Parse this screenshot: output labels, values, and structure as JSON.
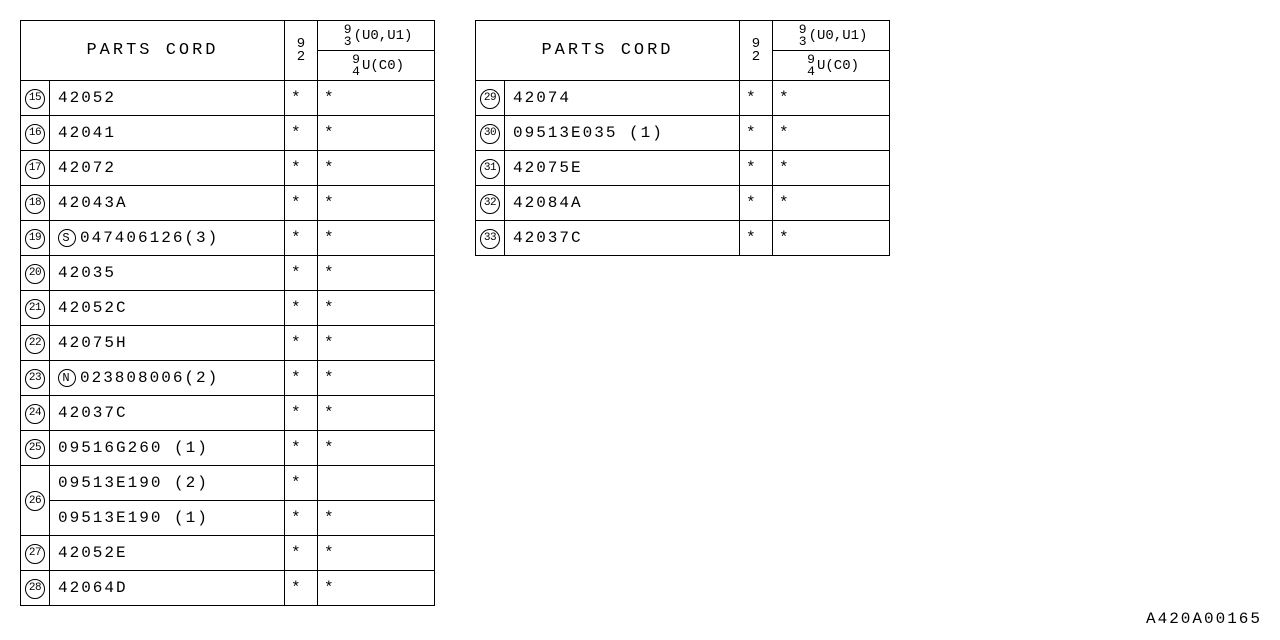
{
  "header": {
    "parts_label": "PARTS CORD",
    "col_a_top": "9",
    "col_a_bot": "2",
    "col_b_top_num": "9 3",
    "col_b_top_rest": "(U0,U1)",
    "col_b_bot_num": "9 4",
    "col_b_bot_rest": "U(C0)"
  },
  "mark": "*",
  "table1": {
    "rows": [
      {
        "num": "15",
        "part": "42052",
        "a": "*",
        "b": "*",
        "span": 1
      },
      {
        "num": "16",
        "part": "42041",
        "a": "*",
        "b": "*",
        "span": 1
      },
      {
        "num": "17",
        "part": "42072",
        "a": "*",
        "b": "*",
        "span": 1
      },
      {
        "num": "18",
        "part": "42043A",
        "a": "*",
        "b": "*",
        "span": 1
      },
      {
        "num": "19",
        "prefix": "S",
        "part": "047406126(3)",
        "a": "*",
        "b": "*",
        "span": 1
      },
      {
        "num": "20",
        "part": "42035",
        "a": "*",
        "b": "*",
        "span": 1
      },
      {
        "num": "21",
        "part": "42052C",
        "a": "*",
        "b": "*",
        "span": 1
      },
      {
        "num": "22",
        "part": "42075H",
        "a": "*",
        "b": "*",
        "span": 1
      },
      {
        "num": "23",
        "prefix": "N",
        "part": "023808006(2)",
        "a": "*",
        "b": "*",
        "span": 1
      },
      {
        "num": "24",
        "part": "42037C",
        "a": "*",
        "b": "*",
        "span": 1
      },
      {
        "num": "25",
        "part": "09516G260 (1)",
        "a": "*",
        "b": "*",
        "span": 1
      },
      {
        "num": "26",
        "part": "09513E190 (2)",
        "a": "*",
        "b": "",
        "span": 2
      },
      {
        "num": "",
        "part": "09513E190 (1)",
        "a": "*",
        "b": "*",
        "span": 0
      },
      {
        "num": "27",
        "part": "42052E",
        "a": "*",
        "b": "*",
        "span": 1
      },
      {
        "num": "28",
        "part": "42064D",
        "a": "*",
        "b": "*",
        "span": 1
      }
    ]
  },
  "table2": {
    "rows": [
      {
        "num": "29",
        "part": "42074",
        "a": "*",
        "b": "*",
        "span": 1
      },
      {
        "num": "30",
        "part": "09513E035 (1)",
        "a": "*",
        "b": "*",
        "span": 1
      },
      {
        "num": "31",
        "part": "42075E",
        "a": "*",
        "b": "*",
        "span": 1
      },
      {
        "num": "32",
        "part": "42084A",
        "a": "*",
        "b": "*",
        "span": 1
      },
      {
        "num": "33",
        "part": "42037C",
        "a": "*",
        "b": "*",
        "span": 1
      }
    ]
  },
  "doc_id": "A420A00165"
}
